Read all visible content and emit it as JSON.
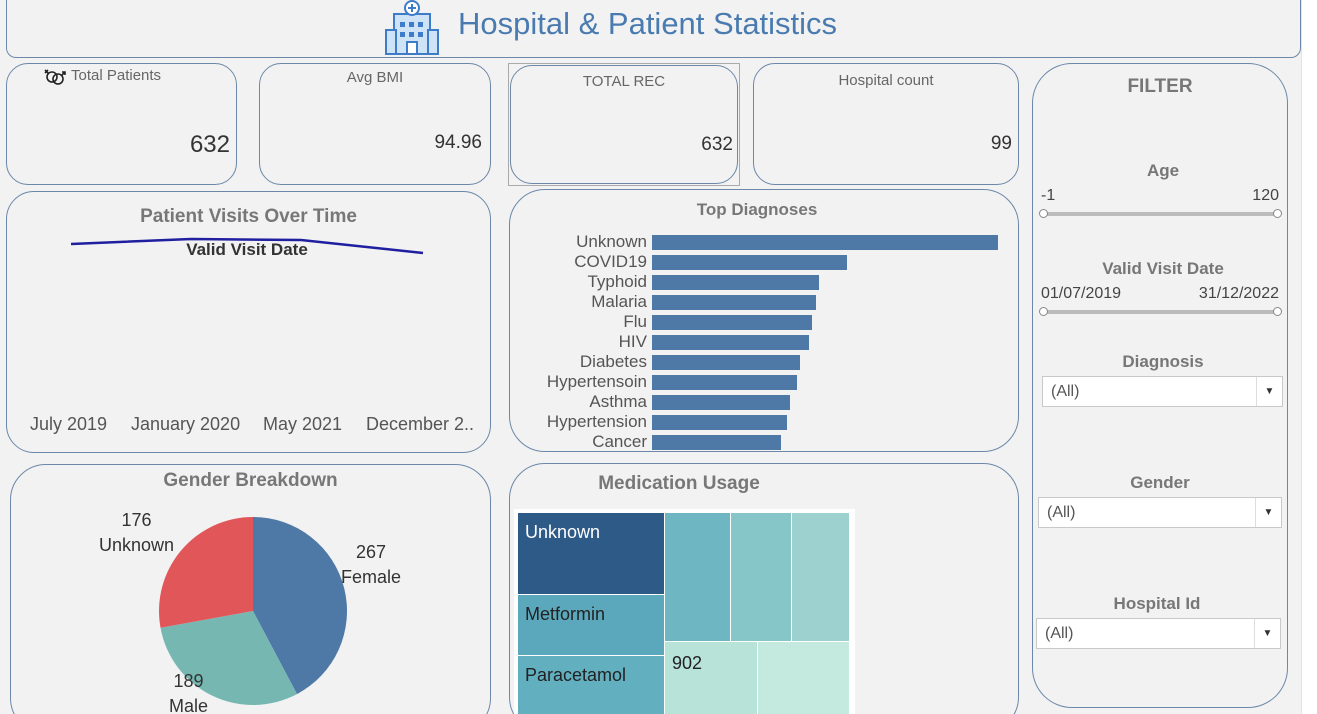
{
  "header": {
    "title": "Hospital & Patient Statistics",
    "icon": "hospital-icon"
  },
  "kpis": {
    "total_patients": {
      "label": "Total Patients",
      "value": "632",
      "icon": "gender-icon"
    },
    "avg_bmi": {
      "label": "Avg BMI",
      "value": "94.96"
    },
    "total_rec": {
      "label": "TOTAL REC",
      "value": "632"
    },
    "hospital_count": {
      "label": "Hospital count",
      "value": "99"
    }
  },
  "visits": {
    "title": "Patient Visits Over Time",
    "series_label": "Valid Visit Date",
    "x_ticks": [
      "July 2019",
      "January 2020",
      "May 2021",
      "December 2.."
    ]
  },
  "diagnoses": {
    "title": "Top Diagnoses"
  },
  "gender": {
    "title": "Gender Breakdown",
    "slices": [
      {
        "count": "267",
        "label": "Female",
        "color": "#4e79a7"
      },
      {
        "count": "189",
        "label": "Male",
        "color": "#76b7b2"
      },
      {
        "count": "176",
        "label": "Unknown",
        "color": "#e15759"
      }
    ]
  },
  "medication": {
    "title": "Medication Usage",
    "labels": [
      "Unknown",
      "Metformin",
      "Paracetamol",
      "902"
    ],
    "colors": [
      "#2e5a87",
      "#5ba8bc",
      "#6db6c2",
      "#86c6c9",
      "#9dd1cf",
      "#b7e3d8",
      "#c4e9de"
    ]
  },
  "filter": {
    "title": "FILTER",
    "age": {
      "label": "Age",
      "min": "-1",
      "max": "120"
    },
    "visit_date": {
      "label": "Valid Visit Date",
      "min": "01/07/2019",
      "max": "31/12/2022"
    },
    "diagnosis": {
      "label": "Diagnosis",
      "value": "(All)"
    },
    "gender": {
      "label": "Gender",
      "value": "(All)"
    },
    "hospital_id": {
      "label": "Hospital Id",
      "value": "(All)"
    }
  },
  "chart_data": [
    {
      "type": "line",
      "title": "Patient Visits Over Time",
      "series": [
        {
          "name": "Valid Visit Date",
          "values": [
            158,
            163,
            162,
            149
          ]
        }
      ],
      "x": [
        "July 2019",
        "January 2020",
        "May 2021",
        "December 2.."
      ]
    },
    {
      "type": "bar",
      "title": "Top Diagnoses",
      "categories": [
        "Unknown",
        "COVID19",
        "Typhoid",
        "Malaria",
        "Flu",
        "HIV",
        "Diabetes",
        "Hypertensoin",
        "Asthma",
        "Hypertension",
        "Cancer"
      ],
      "values": [
        110,
        62,
        53,
        52,
        51,
        50,
        47,
        46,
        44,
        43,
        41
      ]
    },
    {
      "type": "pie",
      "title": "Gender Breakdown",
      "categories": [
        "Female",
        "Male",
        "Unknown"
      ],
      "values": [
        267,
        189,
        176
      ]
    }
  ]
}
